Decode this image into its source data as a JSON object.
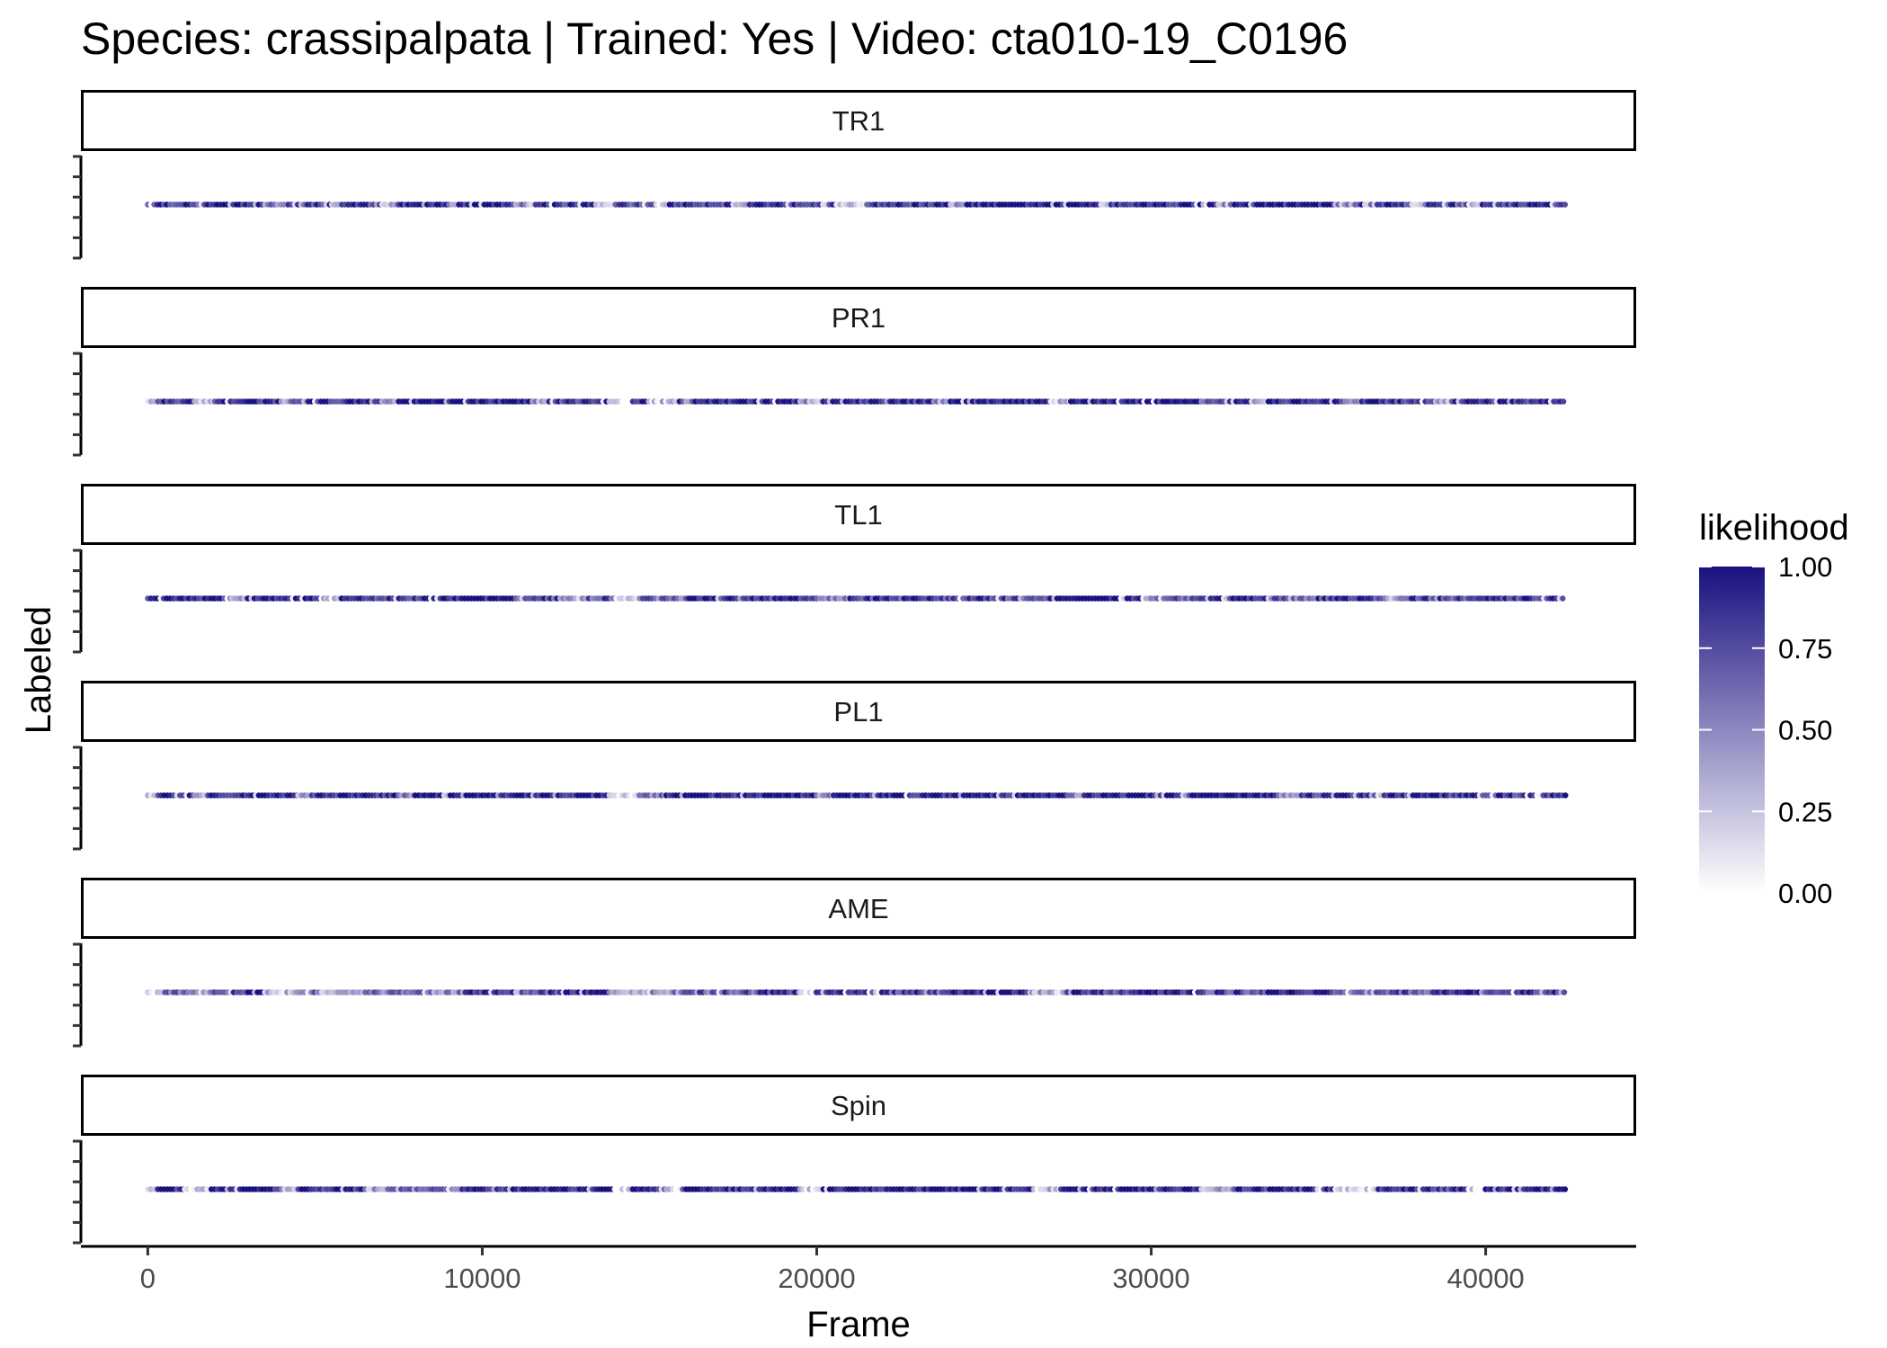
{
  "chart_data": {
    "type": "scatter",
    "title": "Species: crassipalpata | Trained: Yes | Video: cta010-19_C0196",
    "xlabel": "Frame",
    "ylabel": "Labeled",
    "xlim": [
      -2000,
      44500
    ],
    "x_ticks": [
      0,
      10000,
      20000,
      30000,
      40000
    ],
    "x_tick_labels": [
      "0",
      "10000",
      "20000",
      "30000",
      "40000"
    ],
    "grid": false,
    "legend": {
      "title": "likelihood",
      "placement": "right",
      "scale": "continuous",
      "low_color": "#ffffff",
      "high_color": "#1a1180",
      "limits": [
        0,
        1
      ],
      "ticks": [
        0,
        0.25,
        0.5,
        0.75,
        1
      ],
      "tick_labels": [
        "0.00",
        "0.25",
        "0.50",
        "0.75",
        "1.00"
      ]
    },
    "point_color_high": "#1a1180",
    "panels": [
      {
        "name": "TR1",
        "segments": [
          [
            0,
            1500,
            0.85
          ],
          [
            1500,
            1700,
            0.35
          ],
          [
            1700,
            3500,
            0.95
          ],
          [
            3500,
            4200,
            0.5
          ],
          [
            4200,
            5500,
            0.8
          ],
          [
            5500,
            5800,
            0.3
          ],
          [
            5800,
            7000,
            0.85
          ],
          [
            7000,
            7500,
            0.35
          ],
          [
            7500,
            9000,
            0.9
          ],
          [
            9000,
            9300,
            0.5
          ],
          [
            9300,
            11000,
            0.95
          ],
          [
            11000,
            11500,
            0.45
          ],
          [
            11500,
            13500,
            0.85
          ],
          [
            13500,
            14000,
            0.35
          ],
          [
            14000,
            15200,
            0.7
          ],
          [
            15200,
            15600,
            0.2
          ],
          [
            15600,
            17500,
            0.85
          ],
          [
            17500,
            18000,
            0.4
          ],
          [
            18000,
            20600,
            0.9
          ],
          [
            20600,
            21500,
            0.15
          ],
          [
            21500,
            24000,
            0.85
          ],
          [
            24000,
            24500,
            0.4
          ],
          [
            24500,
            28500,
            0.95
          ],
          [
            28500,
            28800,
            0.3
          ],
          [
            28800,
            32000,
            0.9
          ],
          [
            32000,
            32500,
            0.45
          ],
          [
            32500,
            35500,
            0.95
          ],
          [
            35500,
            36100,
            0.4
          ],
          [
            36100,
            37800,
            0.85
          ],
          [
            37800,
            38200,
            0.3
          ],
          [
            38200,
            39500,
            0.75
          ],
          [
            39500,
            39900,
            0.15
          ],
          [
            39900,
            42400,
            0.85
          ]
        ]
      },
      {
        "name": "PR1",
        "segments": [
          [
            0,
            300,
            0.2
          ],
          [
            300,
            1400,
            0.9
          ],
          [
            1400,
            2000,
            0.15
          ],
          [
            2000,
            4000,
            0.9
          ],
          [
            4000,
            4800,
            0.5
          ],
          [
            4800,
            7000,
            0.9
          ],
          [
            7000,
            7500,
            0.4
          ],
          [
            7500,
            11500,
            0.95
          ],
          [
            11500,
            12000,
            0.45
          ],
          [
            12000,
            13800,
            0.85
          ],
          [
            13800,
            14500,
            0.15
          ],
          [
            14500,
            15200,
            0.9
          ],
          [
            15200,
            15900,
            0.3
          ],
          [
            15900,
            19500,
            0.9
          ],
          [
            19500,
            20200,
            0.4
          ],
          [
            20200,
            23500,
            0.9
          ],
          [
            23500,
            24000,
            0.45
          ],
          [
            24000,
            27000,
            0.95
          ],
          [
            27000,
            27600,
            0.25
          ],
          [
            27600,
            31500,
            0.95
          ],
          [
            31500,
            33000,
            0.75
          ],
          [
            33000,
            33500,
            0.3
          ],
          [
            33500,
            35800,
            0.9
          ],
          [
            35800,
            36300,
            0.4
          ],
          [
            36300,
            38500,
            0.85
          ],
          [
            38500,
            39000,
            0.4
          ],
          [
            39000,
            42400,
            0.85
          ]
        ]
      },
      {
        "name": "TL1",
        "segments": [
          [
            0,
            2500,
            0.9
          ],
          [
            2500,
            3000,
            0.4
          ],
          [
            3000,
            5300,
            0.95
          ],
          [
            5300,
            5800,
            0.25
          ],
          [
            5800,
            9000,
            0.85
          ],
          [
            9000,
            11000,
            0.95
          ],
          [
            11000,
            12500,
            0.75
          ],
          [
            12500,
            13000,
            0.35
          ],
          [
            13000,
            14000,
            0.7
          ],
          [
            14000,
            14700,
            0.15
          ],
          [
            14700,
            16000,
            0.6
          ],
          [
            16000,
            20000,
            0.85
          ],
          [
            20000,
            21000,
            0.5
          ],
          [
            21000,
            24000,
            0.8
          ],
          [
            24000,
            27000,
            0.75
          ],
          [
            27000,
            30000,
            0.95
          ],
          [
            30000,
            31500,
            0.7
          ],
          [
            31500,
            33500,
            0.95
          ],
          [
            33500,
            35000,
            0.65
          ],
          [
            35000,
            37000,
            0.85
          ],
          [
            37000,
            37500,
            0.4
          ],
          [
            37500,
            40500,
            0.75
          ],
          [
            40500,
            42400,
            0.85
          ]
        ]
      },
      {
        "name": "PL1",
        "segments": [
          [
            0,
            300,
            0.2
          ],
          [
            300,
            1400,
            0.95
          ],
          [
            1400,
            1800,
            0.3
          ],
          [
            1800,
            4500,
            0.95
          ],
          [
            4500,
            4900,
            0.4
          ],
          [
            4900,
            7500,
            0.9
          ],
          [
            7500,
            8000,
            0.5
          ],
          [
            8000,
            13800,
            0.95
          ],
          [
            13800,
            14600,
            0.2
          ],
          [
            14600,
            15500,
            0.55
          ],
          [
            15500,
            20000,
            0.95
          ],
          [
            20000,
            20500,
            0.4
          ],
          [
            20500,
            27500,
            0.95
          ],
          [
            27500,
            28000,
            0.5
          ],
          [
            28000,
            33800,
            0.95
          ],
          [
            33800,
            34500,
            0.4
          ],
          [
            34500,
            42400,
            0.85
          ]
        ]
      },
      {
        "name": "AME",
        "segments": [
          [
            0,
            500,
            0.15
          ],
          [
            500,
            1200,
            0.7
          ],
          [
            1200,
            2000,
            0.4
          ],
          [
            2000,
            3000,
            0.75
          ],
          [
            3000,
            3500,
            0.95
          ],
          [
            3500,
            4500,
            0.35
          ],
          [
            4500,
            5200,
            0.65
          ],
          [
            5200,
            6500,
            0.3
          ],
          [
            6500,
            7800,
            0.6
          ],
          [
            7800,
            9500,
            0.5
          ],
          [
            9500,
            11000,
            0.9
          ],
          [
            11000,
            12500,
            0.75
          ],
          [
            12500,
            13800,
            0.95
          ],
          [
            13800,
            15000,
            0.3
          ],
          [
            15000,
            16500,
            0.55
          ],
          [
            16500,
            18500,
            0.7
          ],
          [
            18500,
            19500,
            0.85
          ],
          [
            19500,
            20000,
            0.2
          ],
          [
            20000,
            21000,
            0.9
          ],
          [
            21000,
            24000,
            0.75
          ],
          [
            24000,
            26500,
            0.95
          ],
          [
            26500,
            27500,
            0.35
          ],
          [
            27500,
            29500,
            0.8
          ],
          [
            29500,
            31500,
            0.9
          ],
          [
            31500,
            33500,
            0.75
          ],
          [
            33500,
            35500,
            0.9
          ],
          [
            35500,
            37000,
            0.55
          ],
          [
            37000,
            38500,
            0.7
          ],
          [
            38500,
            39500,
            0.95
          ],
          [
            39500,
            42400,
            0.8
          ]
        ]
      },
      {
        "name": "Spin",
        "segments": [
          [
            0,
            300,
            0.2
          ],
          [
            300,
            1100,
            0.95
          ],
          [
            1100,
            1900,
            0.2
          ],
          [
            1900,
            4000,
            0.95
          ],
          [
            4000,
            4500,
            0.35
          ],
          [
            4500,
            6500,
            0.9
          ],
          [
            6500,
            7200,
            0.35
          ],
          [
            7200,
            9000,
            0.75
          ],
          [
            9000,
            9400,
            0.3
          ],
          [
            9400,
            14000,
            0.95
          ],
          [
            14000,
            14500,
            0.15
          ],
          [
            14500,
            15500,
            0.85
          ],
          [
            15500,
            16000,
            0.2
          ],
          [
            16000,
            19500,
            0.9
          ],
          [
            19500,
            20200,
            0.2
          ],
          [
            20200,
            24000,
            0.95
          ],
          [
            24000,
            26500,
            0.95
          ],
          [
            26500,
            27300,
            0.25
          ],
          [
            27300,
            31500,
            0.95
          ],
          [
            31500,
            32500,
            0.35
          ],
          [
            32500,
            35500,
            0.85
          ],
          [
            35500,
            36800,
            0.15
          ],
          [
            36800,
            39500,
            0.85
          ],
          [
            39500,
            40000,
            0.15
          ],
          [
            40000,
            42400,
            0.95
          ]
        ]
      }
    ]
  }
}
